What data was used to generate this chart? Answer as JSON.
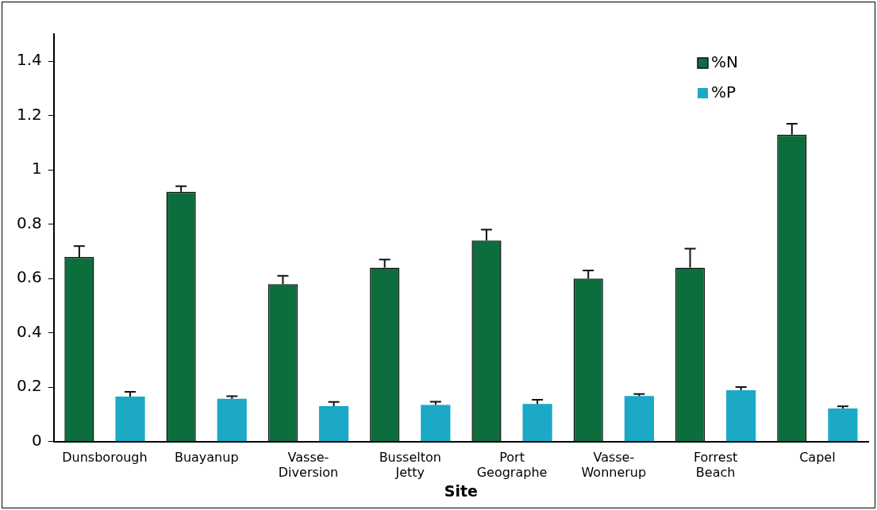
{
  "chart_data": {
    "type": "bar",
    "xlabel": "Site",
    "categories": [
      "Dunsborough",
      "Buayanup",
      "Vasse-Diversion",
      "Busselton Jetty",
      "Port Geographe",
      "Vasse-Wonnerup",
      "Forrest Beach",
      "Capel"
    ],
    "series": [
      {
        "name": "%N",
        "color": "#0b6e3c",
        "values": [
          0.68,
          0.92,
          0.58,
          0.64,
          0.74,
          0.6,
          0.64,
          1.13
        ],
        "errors": [
          [
            0.68,
            0.72
          ],
          [
            0.92,
            0.94
          ],
          [
            0.58,
            0.61
          ],
          [
            0.64,
            0.67
          ],
          [
            0.74,
            0.78
          ],
          [
            0.6,
            0.63
          ],
          [
            0.64,
            0.71
          ],
          [
            1.13,
            1.17
          ]
        ]
      },
      {
        "name": "%P",
        "color": "#1ba9c6",
        "values": [
          0.166,
          0.158,
          0.131,
          0.135,
          0.139,
          0.168,
          0.189,
          0.122
        ],
        "errors": [
          [
            0.166,
            0.183
          ],
          [
            0.158,
            0.167
          ],
          [
            0.131,
            0.146
          ],
          [
            0.135,
            0.147
          ],
          [
            0.139,
            0.154
          ],
          [
            0.168,
            0.175
          ],
          [
            0.189,
            0.201
          ],
          [
            0.122,
            0.13
          ]
        ]
      }
    ],
    "ylim": [
      0,
      1.5
    ],
    "yticks": [
      0,
      0.2,
      0.4,
      0.6,
      0.8,
      1,
      1.2,
      1.4
    ],
    "grid": false,
    "legend": "top right"
  }
}
